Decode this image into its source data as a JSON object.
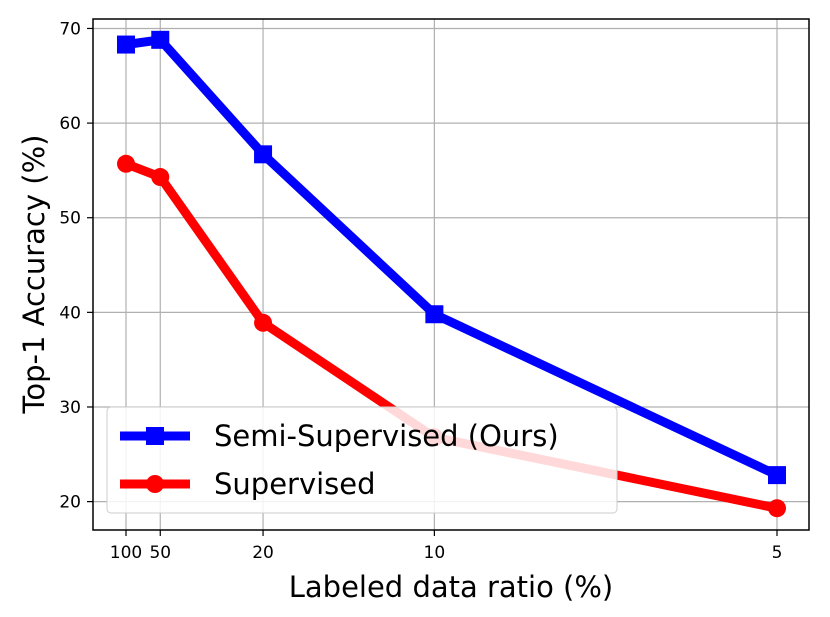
{
  "chart_data": {
    "type": "line",
    "title": "",
    "xlabel": "Labeled data ratio (%)",
    "ylabel": "Top-1 Accuracy (%)",
    "x_ticks": [
      "100",
      "50",
      "20",
      "10",
      "5"
    ],
    "x_tick_values": [
      100,
      50,
      20,
      10,
      5
    ],
    "x_scale": "reciprocal",
    "ylim": [
      17,
      71
    ],
    "y_ticks": [
      20,
      30,
      40,
      50,
      60,
      70
    ],
    "grid": true,
    "legend_position": "lower-left",
    "series": [
      {
        "name": "Semi-Supervised (Ours)",
        "color": "#0000ff",
        "marker": "square",
        "x": [
          100,
          50,
          20,
          10,
          5
        ],
        "y": [
          68.3,
          68.8,
          56.7,
          39.8,
          22.8
        ]
      },
      {
        "name": "Supervised",
        "color": "#ff0000",
        "marker": "circle",
        "x": [
          100,
          50,
          20,
          10,
          5
        ],
        "y": [
          55.7,
          54.3,
          38.9,
          26.8,
          19.3
        ]
      }
    ]
  }
}
